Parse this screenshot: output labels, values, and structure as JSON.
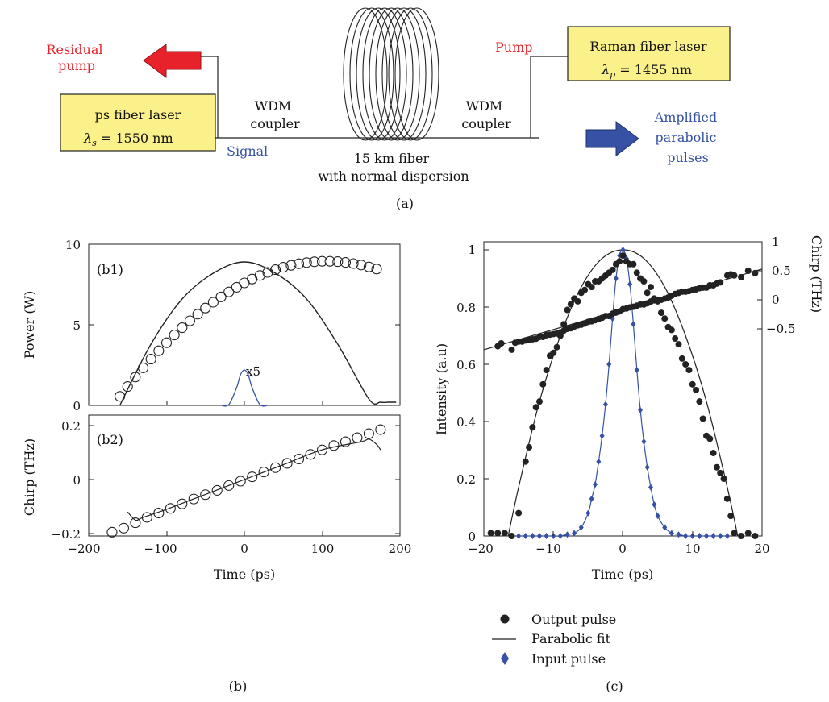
{
  "schematic": {
    "caption": "(a)",
    "ps_laser": {
      "name": "ps fiber laser",
      "lambda_sym": "λ",
      "lambda_sub": "s",
      "lambda_val": " = 1550 nm"
    },
    "raman_laser": {
      "name": "Raman fiber laser",
      "lambda_sym": "λ",
      "lambda_sub": "p",
      "lambda_val": " = 1455 nm"
    },
    "residual_pump": [
      "Residual",
      "pump"
    ],
    "pump": "Pump",
    "signal": "Signal",
    "wdm_left": [
      "WDM",
      "coupler"
    ],
    "wdm_right": [
      "WDM",
      "coupler"
    ],
    "fiber": [
      "15 km fiber",
      "with normal dispersion"
    ],
    "amplified": [
      "Amplified",
      "parabolic",
      "pulses"
    ],
    "colors": {
      "red": "#e8222a",
      "blue": "#3752a5",
      "box_fill": "#fbf18b"
    }
  },
  "panel_b": {
    "caption": "(b)",
    "b1_label": "(b1)",
    "b2_label": "(b2)",
    "x5_label": "x5",
    "xlabel": "Time (ps)",
    "b1_ylabel": "Power (W)",
    "b2_ylabel": "Chirp (THz)",
    "x_ticks": [
      "−200",
      "−100",
      "0",
      "100",
      "200"
    ],
    "b1_y_ticks": [
      "0",
      "5",
      "10"
    ],
    "b2_y_ticks": [
      "−0.2",
      "0",
      "0.2"
    ]
  },
  "panel_c": {
    "caption": "(c)",
    "xlabel": "Time (ps)",
    "ylabel": "Intensity (a.u)",
    "y2label": "Chirp (THz)",
    "x_ticks": [
      "−20",
      "−10",
      "0",
      "10",
      "20"
    ],
    "y_ticks": [
      "0",
      "0.2",
      "0.4",
      "0.6",
      "0.8",
      "1"
    ],
    "y2_ticks": [
      "1",
      "0.5",
      "0",
      "−0.5"
    ],
    "legend": [
      "Output pulse",
      "Parabolic fit",
      "Input pulse"
    ]
  },
  "chart_data": [
    {
      "type": "scatter",
      "panel": "b1",
      "xlabel": "Time (ps)",
      "ylabel": "Power (W)",
      "xlim": [
        -200,
        200
      ],
      "ylim": [
        0,
        10
      ],
      "series": [
        {
          "x": [
            -160,
            -150,
            -140,
            -130,
            -120,
            -110,
            -100,
            -90,
            -80,
            -70,
            -60,
            -50,
            -40,
            -30,
            -20,
            -10,
            0,
            10,
            20,
            30,
            40,
            50,
            60,
            70,
            80,
            90,
            100,
            110,
            120,
            130,
            140,
            150,
            160,
            170
          ],
          "y": [
            0.56,
            1.17,
            1.76,
            2.33,
            2.87,
            3.39,
            3.89,
            4.37,
            4.82,
            5.25,
            5.66,
            6.04,
            6.4,
            6.73,
            7.04,
            7.33,
            7.6,
            7.84,
            8.06,
            8.25,
            8.42,
            8.57,
            8.69,
            8.79,
            8.86,
            8.91,
            8.94,
            8.94,
            8.92,
            8.87,
            8.8,
            8.71,
            8.59,
            8.46
          ]
        },
        {
          "x": [
            -160,
            -120,
            -80,
            -40,
            0,
            40,
            80,
            120,
            160,
            175,
            185,
            195
          ],
          "y": [
            0.0,
            3.8,
            6.6,
            8.2,
            8.9,
            8.2,
            6.6,
            3.8,
            0.4,
            0.2,
            0.2,
            0.2
          ]
        },
        {
          "x": [
            -30,
            -20,
            -10,
            -5,
            0,
            5,
            10,
            20,
            30
          ],
          "y": [
            0.0,
            0.05,
            1.1,
            1.9,
            2.2,
            1.9,
            1.1,
            0.05,
            0.0
          ]
        }
      ]
    },
    {
      "type": "scatter",
      "panel": "b2",
      "xlabel": "Time (ps)",
      "ylabel": "Chirp (THz)",
      "xlim": [
        -200,
        200
      ],
      "ylim": [
        -0.2,
        0.2
      ],
      "series": [
        {
          "x": [
            -170,
            -155,
            -140,
            -125,
            -110,
            -95,
            -80,
            -65,
            -50,
            -35,
            -20,
            -5,
            10,
            25,
            40,
            55,
            70,
            85,
            100,
            115,
            130,
            145,
            160,
            175
          ],
          "y": [
            -0.195,
            -0.18,
            -0.16,
            -0.14,
            -0.124,
            -0.107,
            -0.09,
            -0.072,
            -0.056,
            -0.04,
            -0.022,
            -0.006,
            0.01,
            0.028,
            0.044,
            0.06,
            0.076,
            0.093,
            0.11,
            0.126,
            0.14,
            0.155,
            0.17,
            0.185
          ]
        },
        {
          "x": [
            -150,
            -140,
            -130,
            -100,
            -50,
            0,
            50,
            100,
            150,
            160,
            170,
            175
          ],
          "y": [
            -0.12,
            -0.15,
            -0.14,
            -0.11,
            -0.055,
            0.0,
            0.055,
            0.11,
            0.14,
            0.15,
            0.13,
            0.11
          ]
        }
      ]
    },
    {
      "type": "scatter",
      "panel": "c",
      "xlabel": "Time (ps)",
      "ylabel": "Intensity (a.u)",
      "xlim": [
        -20,
        20
      ],
      "ylim": [
        0,
        1
      ],
      "series": [
        {
          "name": "Output pulse",
          "x": [
            -19,
            -18,
            -17,
            -16,
            -15,
            -14,
            -13.5,
            -13,
            -12.5,
            -12,
            -11.5,
            -11,
            -10.5,
            -10,
            -9.5,
            -9,
            -8.5,
            -8,
            -7.5,
            -7,
            -6.5,
            -6,
            -5.5,
            -5,
            -4.5,
            -4,
            -3.5,
            -3,
            -2.5,
            -2,
            -1.5,
            -1,
            -0.5,
            0,
            0.5,
            1,
            1.5,
            2,
            2.5,
            3,
            3.5,
            4,
            4.5,
            5,
            5.5,
            6,
            6.5,
            7,
            7.5,
            8,
            8.5,
            9,
            9.5,
            10,
            10.5,
            11,
            11.5,
            12,
            12.5,
            13,
            13.5,
            14,
            14.5,
            15,
            15.5,
            16,
            17,
            18,
            19
          ],
          "y": [
            0.01,
            0.01,
            0.01,
            0.0,
            0.08,
            0.26,
            0.31,
            0.38,
            0.45,
            0.47,
            0.53,
            0.58,
            0.63,
            0.64,
            0.66,
            0.7,
            0.74,
            0.79,
            0.81,
            0.83,
            0.82,
            0.85,
            0.86,
            0.88,
            0.87,
            0.89,
            0.89,
            0.9,
            0.91,
            0.92,
            0.93,
            0.95,
            0.96,
            0.98,
            0.96,
            0.95,
            0.95,
            0.92,
            0.9,
            0.89,
            0.85,
            0.87,
            0.83,
            0.82,
            0.78,
            0.76,
            0.73,
            0.72,
            0.69,
            0.67,
            0.62,
            0.6,
            0.58,
            0.53,
            0.51,
            0.47,
            0.41,
            0.35,
            0.34,
            0.29,
            0.24,
            0.22,
            0.2,
            0.13,
            0.07,
            0.01,
            0.0,
            0.01,
            0.0
          ]
        },
        {
          "name": "Parabolic fit",
          "x": [
            -16.5,
            -15,
            -12,
            -9,
            -6,
            -3,
            0,
            3,
            6,
            9,
            12,
            15,
            16.5
          ],
          "y": [
            0.0,
            0.17,
            0.47,
            0.7,
            0.87,
            0.97,
            1.0,
            0.97,
            0.87,
            0.7,
            0.47,
            0.17,
            0.0
          ]
        },
        {
          "name": "Input pulse",
          "x": [
            -15,
            -14,
            -13,
            -12,
            -11,
            -10,
            -9,
            -8,
            -7,
            -6,
            -5,
            -4.5,
            -4,
            -3.5,
            -3,
            -2.5,
            -2,
            -1.5,
            -1,
            -0.5,
            0,
            0.5,
            1,
            1.5,
            2,
            2.5,
            3,
            3.5,
            4,
            4.5,
            5,
            6,
            7,
            8,
            9,
            10,
            11,
            12,
            13,
            14,
            15
          ],
          "y": [
            0,
            0,
            0,
            0,
            0,
            0,
            0,
            0.005,
            0.01,
            0.03,
            0.08,
            0.13,
            0.18,
            0.26,
            0.35,
            0.46,
            0.6,
            0.76,
            0.9,
            0.98,
            1.0,
            0.97,
            0.88,
            0.74,
            0.58,
            0.44,
            0.33,
            0.24,
            0.17,
            0.11,
            0.07,
            0.03,
            0.01,
            0.005,
            0,
            0,
            0,
            0,
            0,
            0,
            0
          ]
        }
      ]
    },
    {
      "type": "scatter",
      "panel": "c-chirp",
      "ylabel": "Chirp (THz)",
      "xlim": [
        -20,
        20
      ],
      "ylim": [
        -1,
        1
      ],
      "series": [
        {
          "x": [
            -18,
            -17.5,
            -16,
            -15.5,
            -15,
            -14.5,
            -14,
            -13.5,
            -13,
            -12.5,
            -12,
            -11.5,
            -11,
            -10.5,
            -10,
            -9.5,
            -9,
            -8.5,
            -8,
            -7.5,
            -7,
            -6.5,
            -6,
            -5.5,
            -5,
            -4.5,
            -4,
            -3.5,
            -3,
            -2.5,
            -2,
            -1.5,
            -1,
            -0.5,
            0,
            0.5,
            1,
            1.5,
            2,
            2.5,
            3,
            3.5,
            4,
            4.5,
            5,
            5.5,
            6,
            6.5,
            7,
            7.5,
            8,
            8.5,
            9,
            9.5,
            10,
            10.5,
            11,
            11.5,
            12,
            12.5,
            13,
            13.5,
            14,
            15,
            15.5,
            16,
            17,
            18,
            19
          ],
          "y": [
            -0.8,
            -0.75,
            -0.86,
            -0.74,
            -0.72,
            -0.72,
            -0.7,
            -0.69,
            -0.68,
            -0.67,
            -0.64,
            -0.64,
            -0.61,
            -0.6,
            -0.59,
            -0.58,
            -0.56,
            -0.53,
            -0.5,
            -0.49,
            -0.46,
            -0.44,
            -0.43,
            -0.41,
            -0.38,
            -0.37,
            -0.35,
            -0.33,
            -0.31,
            -0.28,
            -0.28,
            -0.24,
            -0.22,
            -0.2,
            -0.16,
            -0.15,
            -0.13,
            -0.12,
            -0.1,
            -0.08,
            -0.08,
            -0.06,
            -0.03,
            -0.01,
            0.0,
            0.0,
            0.02,
            0.04,
            0.07,
            0.1,
            0.12,
            0.14,
            0.14,
            0.15,
            0.17,
            0.18,
            0.2,
            0.21,
            0.21,
            0.25,
            0.25,
            0.28,
            0.3,
            0.42,
            0.44,
            0.42,
            0.39,
            0.5,
            0.46
          ]
        },
        {
          "x": [
            -20,
            20
          ],
          "y": [
            -0.86,
            0.53
          ]
        }
      ]
    }
  ]
}
